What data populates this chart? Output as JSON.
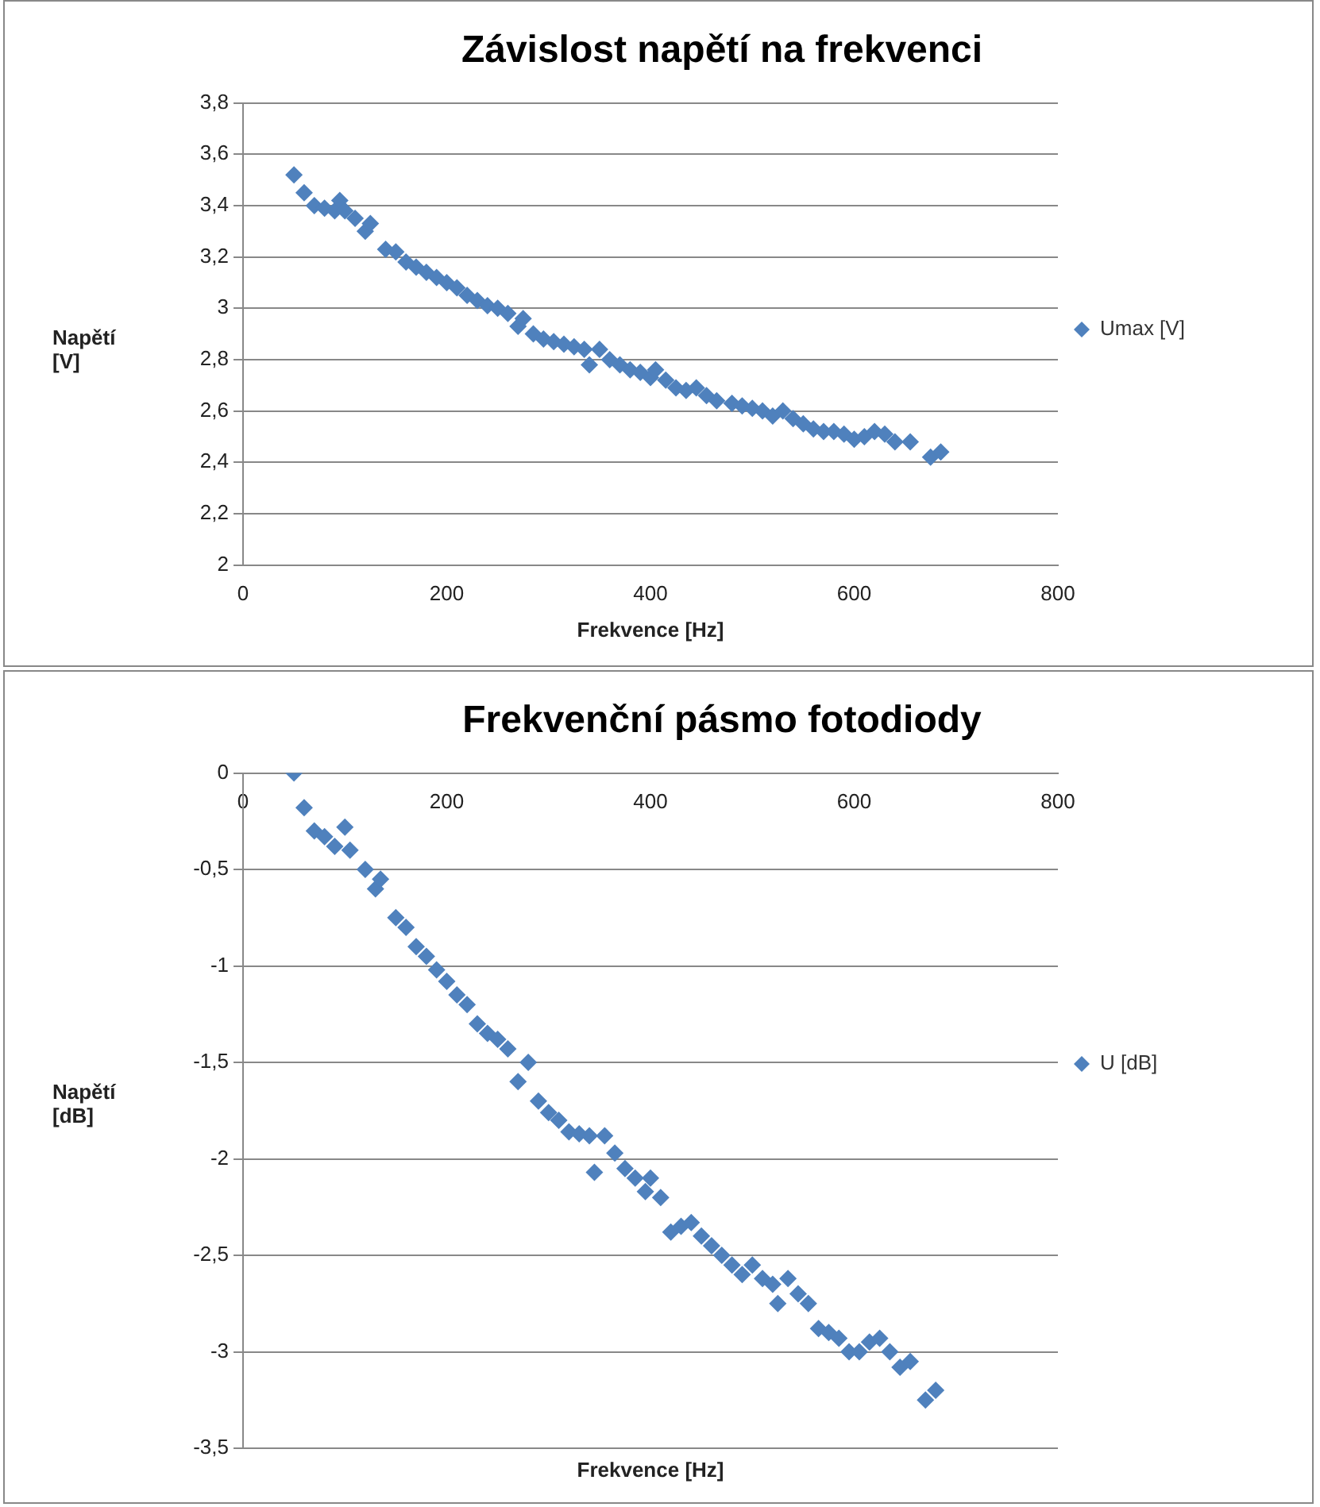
{
  "chart_data": [
    {
      "type": "scatter",
      "title": "Závislost napětí na frekvenci",
      "xlabel": "Frekvence [Hz]",
      "ylabel": "Napětí [V]",
      "marker": "diamond",
      "grid": "y",
      "legend": "right",
      "xlim": [
        0,
        800
      ],
      "xticks": [
        0,
        200,
        400,
        600,
        800
      ],
      "ylim": [
        2,
        3.8
      ],
      "yticks": [
        2,
        {
          "value": 2.2,
          "label": "2,2"
        },
        {
          "value": 2.4,
          "label": "2,4"
        },
        {
          "value": 2.6,
          "label": "2,6"
        },
        {
          "value": 2.8,
          "label": "2,8"
        },
        3,
        {
          "value": 3.2,
          "label": "3,2"
        },
        {
          "value": 3.4,
          "label": "3,4"
        },
        {
          "value": 3.6,
          "label": "3,6"
        },
        {
          "value": 3.8,
          "label": "3,8"
        }
      ],
      "series": [
        {
          "name": "Umax [V]",
          "color": "#4f81bd",
          "x": [
            50,
            60,
            70,
            80,
            90,
            95,
            100,
            110,
            120,
            125,
            140,
            150,
            160,
            170,
            180,
            190,
            200,
            210,
            220,
            230,
            240,
            250,
            260,
            270,
            275,
            285,
            295,
            305,
            315,
            325,
            335,
            340,
            350,
            360,
            370,
            380,
            390,
            400,
            405,
            415,
            425,
            435,
            445,
            455,
            465,
            480,
            490,
            500,
            510,
            520,
            530,
            540,
            550,
            560,
            570,
            580,
            590,
            600,
            610,
            620,
            630,
            640,
            655,
            675,
            685
          ],
          "values": [
            3.52,
            3.45,
            3.4,
            3.39,
            3.38,
            3.42,
            3.38,
            3.35,
            3.3,
            3.33,
            3.23,
            3.22,
            3.18,
            3.16,
            3.14,
            3.12,
            3.1,
            3.08,
            3.05,
            3.03,
            3.01,
            3.0,
            2.98,
            2.93,
            2.96,
            2.9,
            2.88,
            2.87,
            2.86,
            2.85,
            2.84,
            2.78,
            2.84,
            2.8,
            2.78,
            2.76,
            2.75,
            2.73,
            2.76,
            2.72,
            2.69,
            2.68,
            2.69,
            2.66,
            2.64,
            2.63,
            2.62,
            2.61,
            2.6,
            2.58,
            2.6,
            2.57,
            2.55,
            2.53,
            2.52,
            2.52,
            2.51,
            2.49,
            2.5,
            2.52,
            2.51,
            2.48,
            2.48,
            2.42,
            2.44
          ]
        }
      ]
    },
    {
      "type": "scatter",
      "title": "Frekvenční pásmo fotodiody",
      "xlabel": "Frekvence [Hz]",
      "ylabel": "Napětí [dB]",
      "marker": "diamond",
      "grid": "y",
      "legend": "right",
      "xlim": [
        0,
        800
      ],
      "xticks": [
        0,
        200,
        400,
        600,
        800
      ],
      "ylim": [
        -3.5,
        0
      ],
      "yticks": [
        {
          "value": -3.5,
          "label": "-3,5"
        },
        -3,
        {
          "value": -2.5,
          "label": "-2,5"
        },
        -2,
        {
          "value": -1.5,
          "label": "-1,5"
        },
        -1,
        {
          "value": -0.5,
          "label": "-0,5"
        },
        0
      ],
      "series": [
        {
          "name": "U [dB]",
          "color": "#4f81bd",
          "x": [
            50,
            60,
            70,
            80,
            90,
            100,
            105,
            120,
            130,
            135,
            150,
            160,
            170,
            180,
            190,
            200,
            210,
            220,
            230,
            240,
            250,
            260,
            270,
            280,
            290,
            300,
            310,
            320,
            330,
            340,
            345,
            355,
            365,
            375,
            385,
            395,
            400,
            410,
            420,
            430,
            440,
            450,
            460,
            470,
            480,
            490,
            500,
            510,
            520,
            525,
            535,
            545,
            555,
            565,
            575,
            585,
            595,
            605,
            615,
            625,
            635,
            645,
            655,
            670,
            680
          ],
          "values": [
            0,
            -0.18,
            -0.3,
            -0.33,
            -0.38,
            -0.28,
            -0.4,
            -0.5,
            -0.6,
            -0.55,
            -0.75,
            -0.8,
            -0.9,
            -0.95,
            -1.02,
            -1.08,
            -1.15,
            -1.2,
            -1.3,
            -1.35,
            -1.38,
            -1.43,
            -1.6,
            -1.5,
            -1.7,
            -1.76,
            -1.8,
            -1.86,
            -1.87,
            -1.88,
            -2.07,
            -1.88,
            -1.97,
            -2.05,
            -2.1,
            -2.17,
            -2.1,
            -2.2,
            -2.38,
            -2.35,
            -2.33,
            -2.4,
            -2.45,
            -2.5,
            -2.55,
            -2.6,
            -2.55,
            -2.62,
            -2.65,
            -2.75,
            -2.62,
            -2.7,
            -2.75,
            -2.88,
            -2.9,
            -2.93,
            -3.0,
            -3.0,
            -2.95,
            -2.93,
            -3.0,
            -3.08,
            -3.05,
            -3.25,
            -3.2
          ]
        }
      ]
    }
  ]
}
